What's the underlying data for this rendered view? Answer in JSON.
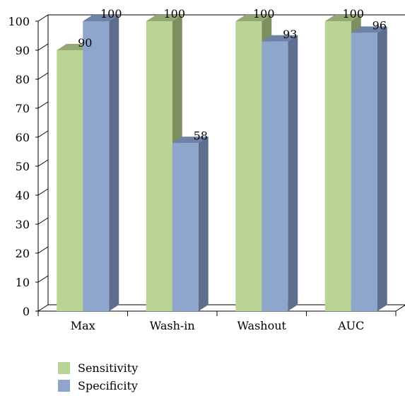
{
  "chart_data": {
    "type": "bar",
    "style": "3d-clustered-column",
    "categories": [
      "Max",
      "Wash-in",
      "Washout",
      "AUC"
    ],
    "series": [
      {
        "name": "Sensitivity",
        "values": [
          90,
          100,
          100,
          100
        ],
        "color": "#bad496",
        "top_color": "#93a872",
        "side_color": "#7d8f5f"
      },
      {
        "name": "Specificity",
        "values": [
          100,
          58,
          93,
          96
        ],
        "color": "#8ea6cc",
        "top_color": "#6e82a6",
        "side_color": "#5e6e8e"
      }
    ],
    "ylim": [
      0,
      100
    ],
    "yticks": [
      0,
      10,
      20,
      30,
      40,
      50,
      60,
      70,
      80,
      90,
      100
    ],
    "grid": false,
    "legend": "bottom-left",
    "data_labels": true,
    "title": "",
    "xlabel": "",
    "ylabel": ""
  }
}
